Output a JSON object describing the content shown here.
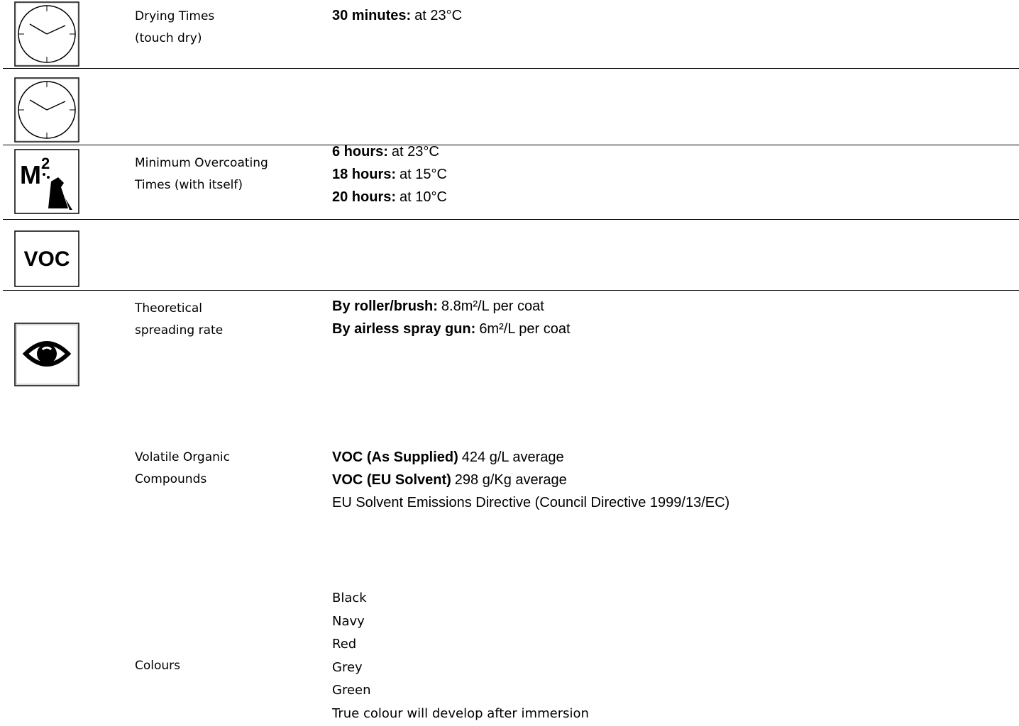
{
  "rows": [
    {
      "label": [
        "Drying Times",
        "(touch dry)"
      ],
      "details": [
        {
          "bold": "30 minutes:",
          "text": "at 23°C"
        }
      ]
    },
    {
      "label": [
        "Minimum Overcoating",
        "Times (with itself)"
      ],
      "details": [
        {
          "bold": "6 hours:",
          "text": "at 23°C"
        },
        {
          "bold": "18 hours:",
          "text": "at 15°C"
        },
        {
          "bold": "20 hours:",
          "text": "at 10°C"
        }
      ]
    },
    {
      "icon": {
        "main": "M",
        "sup": "2"
      },
      "label": [
        "Theoretical",
        "spreading rate"
      ],
      "details": [
        {
          "bold": "By roller/brush:",
          "text": "8.8m²/L per coat"
        },
        {
          "bold": "By airless spray gun:",
          "text": "6m²/L per coat"
        }
      ]
    },
    {
      "icon": {
        "main": "VOC"
      },
      "label": [
        "Volatile Organic",
        "Compounds"
      ],
      "details": [
        {
          "bold": "VOC (As Supplied)",
          "text": "424 g/L average"
        },
        {
          "bold": "VOC (EU Solvent)",
          "text": "298 g/Kg average"
        },
        {
          "text": "EU Solvent Emissions Directive (Council Directive 1999/13/EC)"
        }
      ]
    },
    {
      "label": [
        "Colours"
      ],
      "details": [
        {
          "text": "Black"
        },
        {
          "text": "Navy"
        },
        {
          "text": "Red"
        },
        {
          "text": "Grey"
        },
        {
          "text": "Green"
        },
        {
          "text": "True colour will develop after immersion"
        }
      ]
    }
  ]
}
